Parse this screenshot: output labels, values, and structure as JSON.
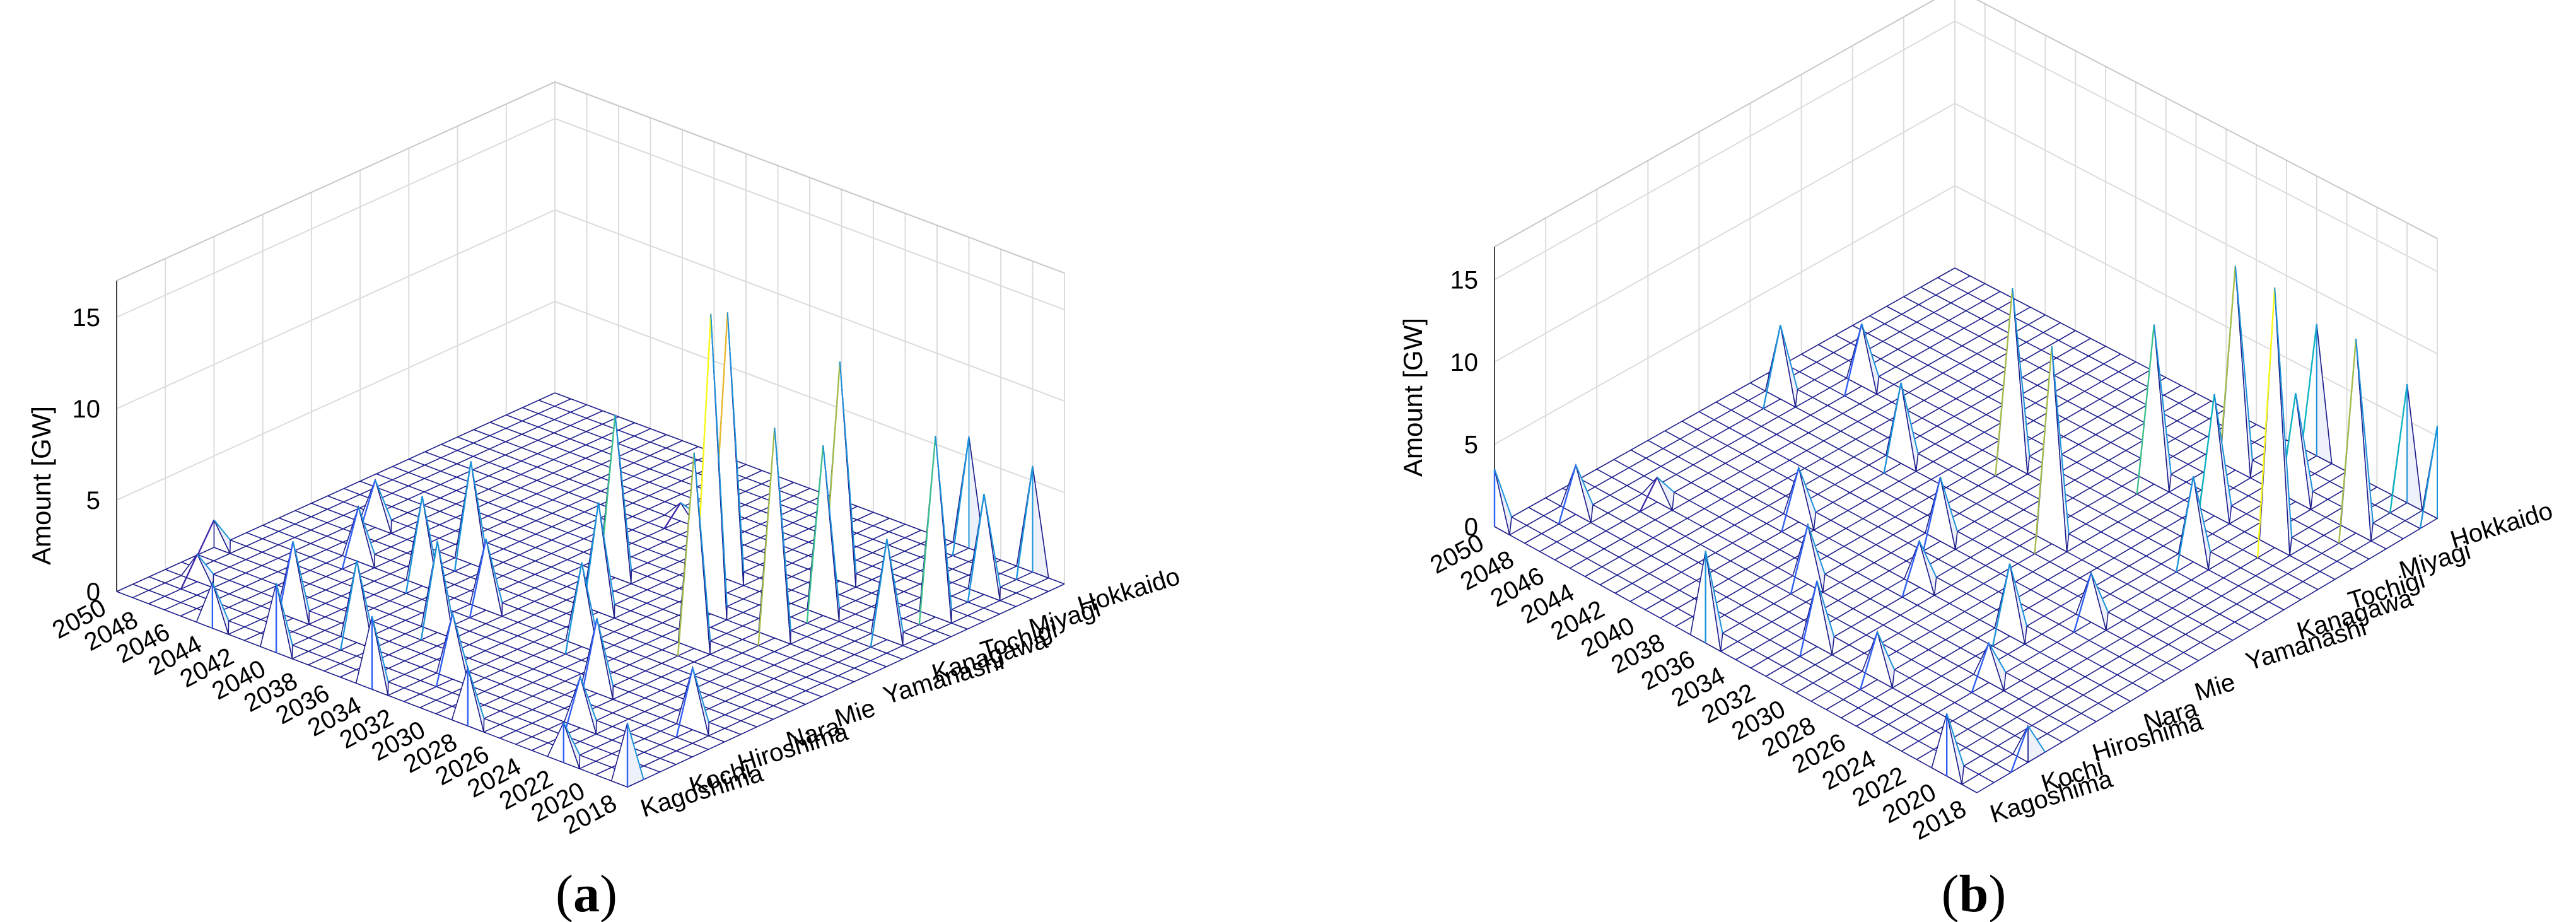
{
  "figure": {
    "panel_labels": [
      "a",
      "b"
    ]
  },
  "chart_data": [
    {
      "panel": "a",
      "type": "surface3d",
      "ylabel": "Amount [GW]",
      "zticks": [
        0,
        5,
        10,
        15
      ],
      "zlim": [
        0,
        17
      ],
      "years": [
        2018,
        2020,
        2022,
        2024,
        2026,
        2028,
        2030,
        2032,
        2034,
        2036,
        2038,
        2040,
        2042,
        2044,
        2046,
        2048,
        2050
      ],
      "year_ticks": [
        "2018",
        "2020",
        "2022",
        "2024",
        "2026",
        "2028",
        "2030",
        "2032",
        "2034",
        "2036",
        "2038",
        "2040",
        "2042",
        "2044",
        "2046",
        "2048",
        "2050"
      ],
      "prefectures": [
        "Kagoshima",
        "Kochi",
        "Hiroshima",
        "Nara",
        "Mie",
        "Yamanashi",
        "Kanagawa",
        "Tochigi",
        "Miyagi",
        "Hokkaido"
      ],
      "peaks": [
        {
          "prefecture": "Hiroshima",
          "year": 2050,
          "value": 1.5
        },
        {
          "prefecture": "Kochi",
          "year": 2048,
          "value": 1.5
        },
        {
          "prefecture": "Kagoshima",
          "year": 2044,
          "value": 2.5
        },
        {
          "prefecture": "Kochi",
          "year": 2042,
          "value": 4.2
        },
        {
          "prefecture": "Kagoshima",
          "year": 2040,
          "value": 3.8
        },
        {
          "prefecture": "Kochi",
          "year": 2038,
          "value": 4.5
        },
        {
          "prefecture": "Hiroshima",
          "year": 2036,
          "value": 5.0
        },
        {
          "prefecture": "Kagoshima",
          "year": 2034,
          "value": 4.0
        },
        {
          "prefecture": "Kochi",
          "year": 2032,
          "value": 3.6
        },
        {
          "prefecture": "Nara",
          "year": 2030,
          "value": 4.6
        },
        {
          "prefecture": "Kagoshima",
          "year": 2028,
          "value": 3.2
        },
        {
          "prefecture": "Hiroshima",
          "year": 2026,
          "value": 4.1
        },
        {
          "prefecture": "Kochi",
          "year": 2024,
          "value": 2.8
        },
        {
          "prefecture": "Kagoshima",
          "year": 2022,
          "value": 2.2
        },
        {
          "prefecture": "Hiroshima",
          "year": 2020,
          "value": 3.4
        },
        {
          "prefecture": "Kagoshima",
          "year": 2018,
          "value": 3.5
        },
        {
          "prefecture": "Nara",
          "year": 2044,
          "value": 3.0
        },
        {
          "prefecture": "Mie",
          "year": 2040,
          "value": 5.6
        },
        {
          "prefecture": "Nara",
          "year": 2036,
          "value": 3.9
        },
        {
          "prefecture": "Mie",
          "year": 2032,
          "value": 6.0
        },
        {
          "prefecture": "Mie",
          "year": 2026,
          "value": 10.7
        },
        {
          "prefecture": "Yamanashi",
          "year": 2034,
          "value": 8.9
        },
        {
          "prefecture": "Yamanashi",
          "year": 2028,
          "value": 16.4
        },
        {
          "prefecture": "Yamanashi",
          "year": 2024,
          "value": 11.5
        },
        {
          "prefecture": "Kanagawa",
          "year": 2030,
          "value": 14.6
        },
        {
          "prefecture": "Kanagawa",
          "year": 2024,
          "value": 9.3
        },
        {
          "prefecture": "Kanagawa",
          "year": 2020,
          "value": 5.5
        },
        {
          "prefecture": "Tochigi",
          "year": 2026,
          "value": 12.0
        },
        {
          "prefecture": "Tochigi",
          "year": 2020,
          "value": 9.9
        },
        {
          "prefecture": "Tochigi",
          "year": 2036,
          "value": 1.0
        },
        {
          "prefecture": "Miyagi",
          "year": 2020,
          "value": 5.5
        },
        {
          "prefecture": "Hokkaido",
          "year": 2024,
          "value": 6.1
        },
        {
          "prefecture": "Hokkaido",
          "year": 2020,
          "value": 5.8
        },
        {
          "prefecture": "Mie",
          "year": 2046,
          "value": 2.6
        },
        {
          "prefecture": "Nara",
          "year": 2040,
          "value": 4.9
        }
      ]
    },
    {
      "panel": "b",
      "type": "surface3d",
      "ylabel": "Amount [GW]",
      "zticks": [
        0,
        5,
        10,
        15
      ],
      "zlim": [
        0,
        17
      ],
      "years": [
        2018,
        2020,
        2022,
        2024,
        2026,
        2028,
        2030,
        2032,
        2034,
        2036,
        2038,
        2040,
        2042,
        2044,
        2046,
        2048,
        2050
      ],
      "year_ticks": [
        "2018",
        "2020",
        "2022",
        "2024",
        "2026",
        "2028",
        "2030",
        "2032",
        "2034",
        "2036",
        "2038",
        "2040",
        "2042",
        "2044",
        "2046",
        "2048",
        "2050"
      ],
      "prefectures": [
        "Kagoshima",
        "Kochi",
        "Hiroshima",
        "Nara",
        "Mie",
        "Yamanashi",
        "Kanagawa",
        "Tochigi",
        "Miyagi",
        "Hokkaido"
      ],
      "peaks": [
        {
          "prefecture": "Kagoshima",
          "year": 2050,
          "value": 3.5
        },
        {
          "prefecture": "Kochi",
          "year": 2048,
          "value": 3.0
        },
        {
          "prefecture": "Hiroshima",
          "year": 2046,
          "value": 1.5
        },
        {
          "prefecture": "Kagoshima",
          "year": 2036,
          "value": 5.6
        },
        {
          "prefecture": "Kochi",
          "year": 2032,
          "value": 4.0
        },
        {
          "prefecture": "Kochi",
          "year": 2028,
          "value": 2.9
        },
        {
          "prefecture": "Hiroshima",
          "year": 2024,
          "value": 2.4
        },
        {
          "prefecture": "Kagoshima",
          "year": 2020,
          "value": 3.8
        },
        {
          "prefecture": "Kochi",
          "year": 2018,
          "value": 2.2
        },
        {
          "prefecture": "Nara",
          "year": 2040,
          "value": 3.3
        },
        {
          "prefecture": "Hiroshima",
          "year": 2036,
          "value": 3.6
        },
        {
          "prefecture": "Mie",
          "year": 2034,
          "value": 3.9
        },
        {
          "prefecture": "Nara",
          "year": 2026,
          "value": 4.4
        },
        {
          "prefecture": "Yamanashi",
          "year": 2040,
          "value": 4.9
        },
        {
          "prefecture": "Yamanashi",
          "year": 2048,
          "value": 4.5
        },
        {
          "prefecture": "Kanagawa",
          "year": 2046,
          "value": 3.8
        },
        {
          "prefecture": "Kanagawa",
          "year": 2036,
          "value": 10.8
        },
        {
          "prefecture": "Yamanashi",
          "year": 2030,
          "value": 12.0
        },
        {
          "prefecture": "Tochigi",
          "year": 2030,
          "value": 9.7
        },
        {
          "prefecture": "Tochigi",
          "year": 2022,
          "value": 15.8
        },
        {
          "prefecture": "Miyagi",
          "year": 2028,
          "value": 12.4
        },
        {
          "prefecture": "Miyagi",
          "year": 2020,
          "value": 11.8
        },
        {
          "prefecture": "Hokkaido",
          "year": 2026,
          "value": 8.0
        },
        {
          "prefecture": "Hokkaido",
          "year": 2020,
          "value": 7.2
        },
        {
          "prefecture": "Mie",
          "year": 2024,
          "value": 3.0
        },
        {
          "prefecture": "Kanagawa",
          "year": 2024,
          "value": 5.2
        },
        {
          "prefecture": "Tochigi",
          "year": 2026,
          "value": 7.4
        },
        {
          "prefecture": "Miyagi",
          "year": 2024,
          "value": 6.6
        },
        {
          "prefecture": "Hokkaido",
          "year": 2018,
          "value": 5.6
        },
        {
          "prefecture": "Nara",
          "year": 2032,
          "value": 2.8
        }
      ]
    }
  ]
}
